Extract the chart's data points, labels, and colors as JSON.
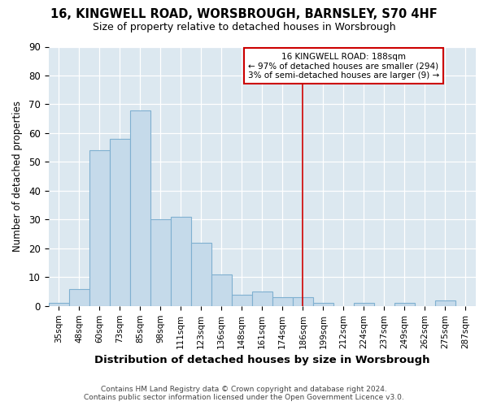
{
  "title_line1": "16, KINGWELL ROAD, WORSBROUGH, BARNSLEY, S70 4HF",
  "title_line2": "Size of property relative to detached houses in Worsbrough",
  "xlabel": "Distribution of detached houses by size in Worsbrough",
  "ylabel": "Number of detached properties",
  "categories": [
    "35sqm",
    "48sqm",
    "60sqm",
    "73sqm",
    "85sqm",
    "98sqm",
    "111sqm",
    "123sqm",
    "136sqm",
    "148sqm",
    "161sqm",
    "174sqm",
    "186sqm",
    "199sqm",
    "212sqm",
    "224sqm",
    "237sqm",
    "249sqm",
    "262sqm",
    "275sqm",
    "287sqm"
  ],
  "values": [
    1,
    6,
    54,
    58,
    68,
    30,
    31,
    22,
    11,
    4,
    5,
    3,
    3,
    1,
    0,
    1,
    0,
    1,
    0,
    2,
    0
  ],
  "bar_color": "#c5daea",
  "bar_edge_color": "#7fb0d0",
  "vline_index": 12,
  "vline_color": "#cc0000",
  "annotation_line1": "16 KINGWELL ROAD: 188sqm",
  "annotation_line2": "← 97% of detached houses are smaller (294)",
  "annotation_line3": "3% of semi-detached houses are larger (9) →",
  "ylim": [
    0,
    90
  ],
  "yticks": [
    0,
    10,
    20,
    30,
    40,
    50,
    60,
    70,
    80,
    90
  ],
  "plot_bg_color": "#dce8f0",
  "fig_bg_color": "#ffffff",
  "grid_color": "#ffffff",
  "footer_line1": "Contains HM Land Registry data © Crown copyright and database right 2024.",
  "footer_line2": "Contains public sector information licensed under the Open Government Licence v3.0."
}
